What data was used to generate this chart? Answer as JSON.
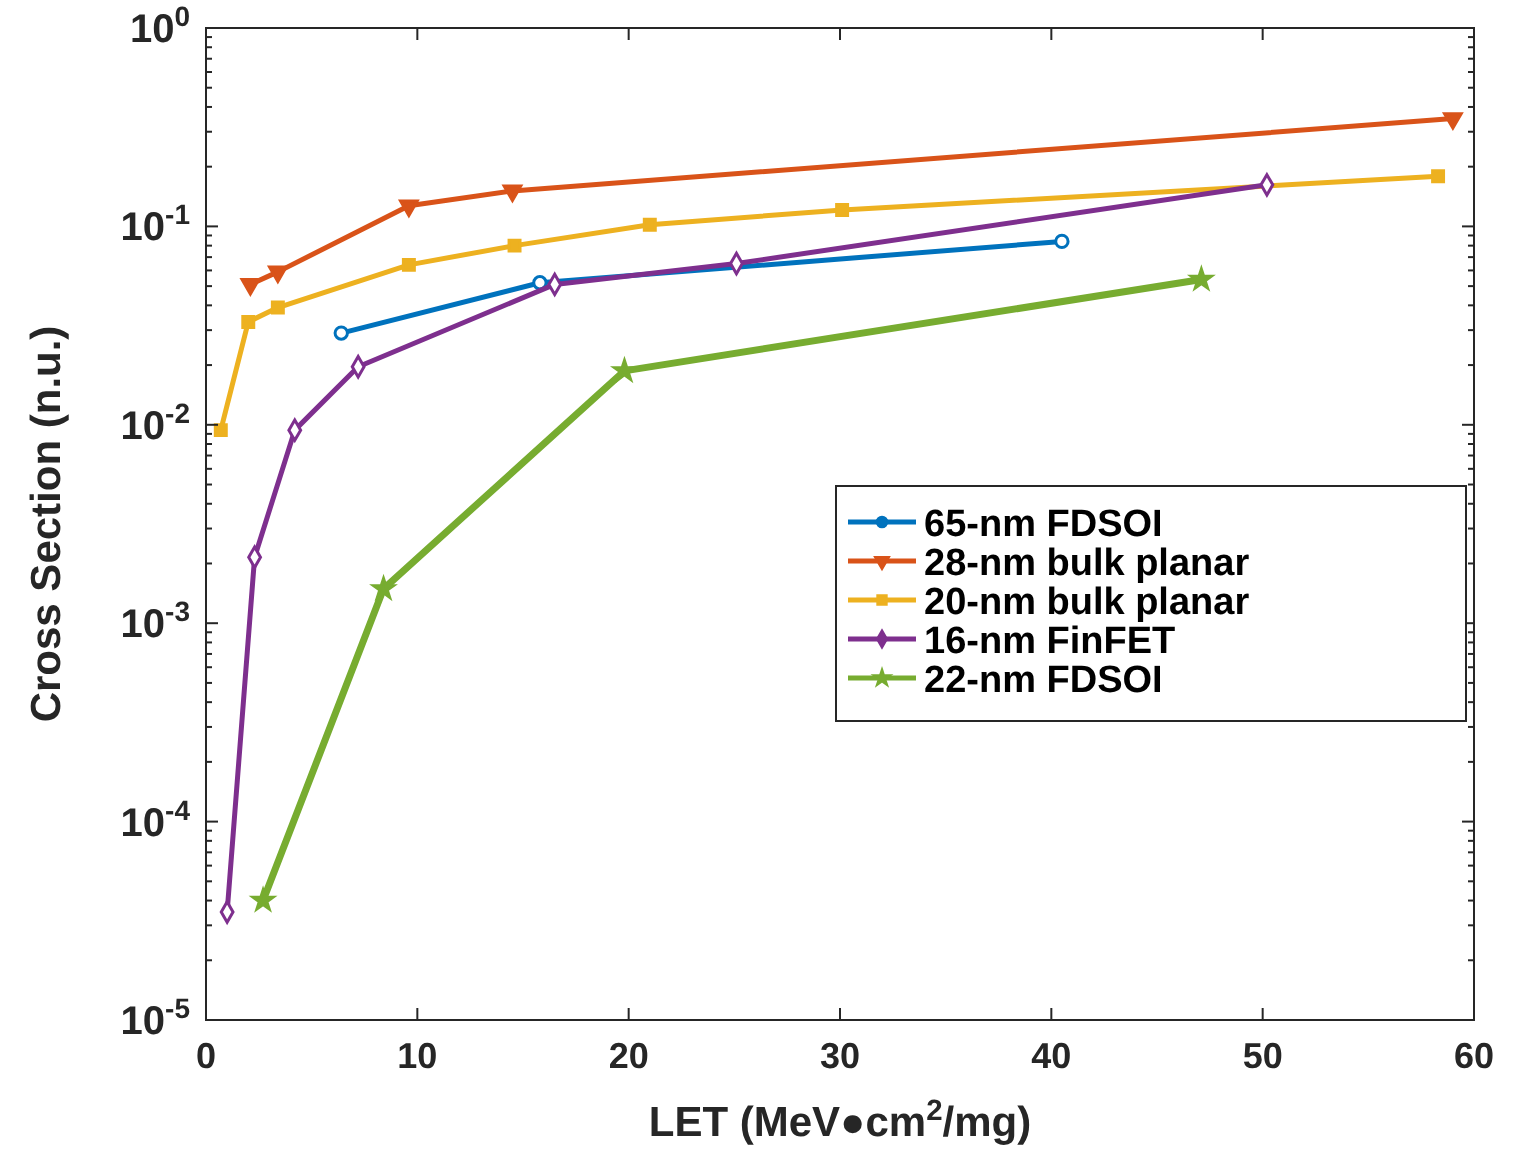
{
  "chart_data": {
    "type": "line",
    "xlabel": "LET (MeV●cm$^{2}$/mg)",
    "ylabel": "Cross Section (n.u.)",
    "log": "y",
    "grid": false,
    "legend": "bottom right",
    "xlim": [
      0,
      60
    ],
    "xticks": [
      0,
      10,
      20,
      30,
      40,
      50,
      60
    ],
    "ylim": [
      1e-05,
      1
    ],
    "yticks": [
      {
        "value": 1e-05,
        "label": "10$^{-5}$"
      },
      {
        "value": 0.0001,
        "label": "10$^{-4}$"
      },
      {
        "value": 0.001,
        "label": "10$^{-3}$"
      },
      {
        "value": 0.01,
        "label": "10$^{-2}$"
      },
      {
        "value": 0.1,
        "label": "10$^{-1}$"
      },
      {
        "value": 1,
        "label": "10$^{0}$"
      }
    ],
    "series": [
      {
        "name": "65-nm FDSOI",
        "color": "#0072bd",
        "marker": "circle",
        "x": [
          6.4,
          15.8,
          40.5
        ],
        "values": [
          0.029,
          0.052,
          0.084
        ]
      },
      {
        "name": "28-nm bulk planar",
        "color": "#d95319",
        "marker": "triangle",
        "x": [
          2.1,
          3.4,
          9.6,
          14.5,
          59.0
        ],
        "values": [
          0.051,
          0.059,
          0.127,
          0.151,
          0.35
        ]
      },
      {
        "name": "20-nm bulk planar",
        "color": "#edb120",
        "marker": "square",
        "x": [
          0.7,
          2.0,
          3.4,
          9.6,
          14.6,
          21.0,
          30.1,
          58.3
        ],
        "values": [
          0.0094,
          0.033,
          0.039,
          0.064,
          0.08,
          0.102,
          0.121,
          0.179
        ]
      },
      {
        "name": "16-nm FinFET",
        "color": "#7e2f8e",
        "marker": "diamond",
        "x": [
          1.0,
          2.3,
          4.2,
          7.2,
          16.5,
          25.1,
          50.2
        ],
        "values": [
          3.5e-05,
          0.00215,
          0.0094,
          0.0196,
          0.051,
          0.065,
          0.162
        ]
      },
      {
        "name": "22-nm FDSOI",
        "color": "#77ac30",
        "marker": "star",
        "x": [
          2.7,
          8.4,
          19.8,
          47.1
        ],
        "values": [
          4e-05,
          0.00149,
          0.0187,
          0.054
        ]
      }
    ]
  }
}
